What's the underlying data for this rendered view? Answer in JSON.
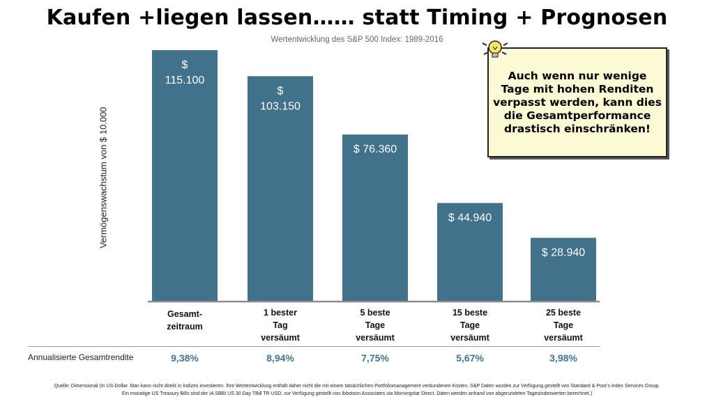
{
  "title": "Kaufen +liegen lassen…… statt Timing + Prognosen",
  "subtitle": "Wertentwicklung des S&P 500 Index: 1989-2016",
  "note": {
    "lines": [
      "Auch wenn nur wenige",
      "Tage mit hohen Renditen",
      "verpasst werden, kann dies",
      "die Gesamtperformance",
      "drastisch einschränken!"
    ],
    "icon": "lightbulb-icon"
  },
  "returns_label": "Annualisierte Gesamtrendite",
  "source": {
    "line1": "Quelle: Dimensional (In US-Dollar. Man kann nicht direkt in Indizes investieren. Ihre Wertentwicklung enthält daher nicht die mit einem tatsächlichen Portfoliomanagement verbundenen Kosten. S&P Daten wurden zur Verfügung gestellt von Standard & Poor's Index Services Group.",
    "line2": "Ein monatige US Treasury Bills sind der IA SBBI US 30 Day TBill TR USD, zur Verfügung gestellt von Ibbotson Associates via Morningstar Direct. Daten werden anhand von abgerundeten Tagesindexwerten berechnet.)"
  },
  "colors": {
    "bar": "#42718b",
    "returns": "#3e7594",
    "note_bg": "#fdfbd6"
  },
  "chart_data": {
    "type": "bar",
    "title": "Wertentwicklung des S&P 500 Index: 1989-2016",
    "ylabel": "Vermögenswachstum von $ 10.000",
    "xlabel": "",
    "ylim": [
      0,
      115100
    ],
    "grid": false,
    "categories": [
      [
        "Gesamt-",
        "zeitraum"
      ],
      [
        "1 bester",
        "Tag",
        "versäumt"
      ],
      [
        "5 beste",
        "Tage",
        "versäumt"
      ],
      [
        "15 beste",
        "Tage",
        "versäumt"
      ],
      [
        "25 beste",
        "Tage",
        "versäumt"
      ]
    ],
    "values": [
      115100,
      103150,
      76360,
      44940,
      28940
    ],
    "value_labels": [
      [
        "$",
        "115.100"
      ],
      [
        "$",
        "103.150"
      ],
      [
        "$ 76.360"
      ],
      [
        "$ 44.940"
      ],
      [
        "$ 28.940"
      ]
    ],
    "annualized_returns": [
      "9,38%",
      "8,94%",
      "7,75%",
      "5,67%",
      "3,98%"
    ]
  }
}
